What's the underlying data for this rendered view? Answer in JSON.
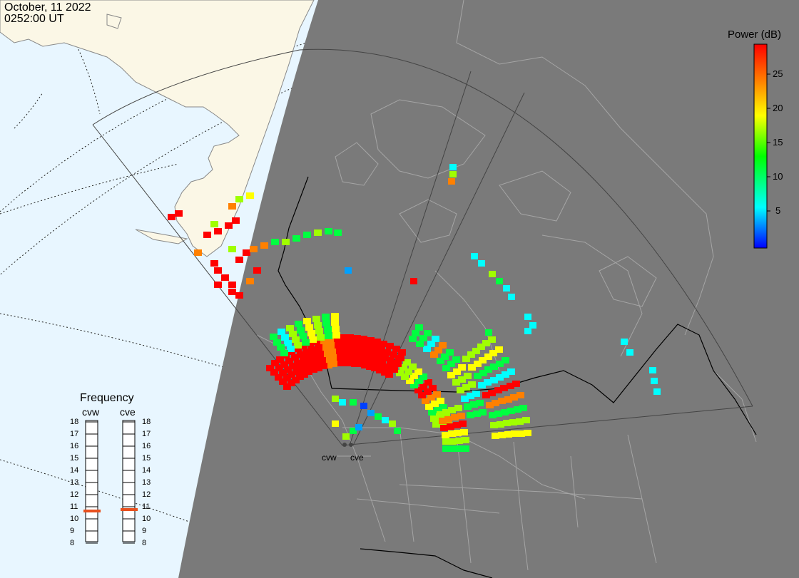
{
  "header": {
    "date": "October, 11 2022",
    "time": "0252:00 UT"
  },
  "colorbar": {
    "title": "Power (dB)",
    "ticks": [
      "25",
      "20",
      "15",
      "10",
      "5"
    ],
    "range_db": [
      0,
      30
    ],
    "colors": [
      "#0000ff",
      "#00ffff",
      "#00ff00",
      "#ffff00",
      "#ff8000",
      "#ff0000"
    ]
  },
  "frequency_panel": {
    "title": "Frequency",
    "radars": [
      {
        "label": "cvw",
        "selected_mhz": 10.5
      },
      {
        "label": "cve",
        "selected_mhz": 10.5
      }
    ],
    "scale": [
      "18",
      "17",
      "16",
      "15",
      "14",
      "13",
      "12",
      "11",
      "10",
      "9",
      "8"
    ],
    "marker_color": "#e8501e"
  },
  "radar_labels": [
    "cvw",
    "cve"
  ],
  "colors": {
    "ocean": "#e8f6ff",
    "land_day": "#fbf7e6",
    "night_shade": "#7a7a7a",
    "grid": "#000000",
    "borders": "#a5a5a5"
  }
}
